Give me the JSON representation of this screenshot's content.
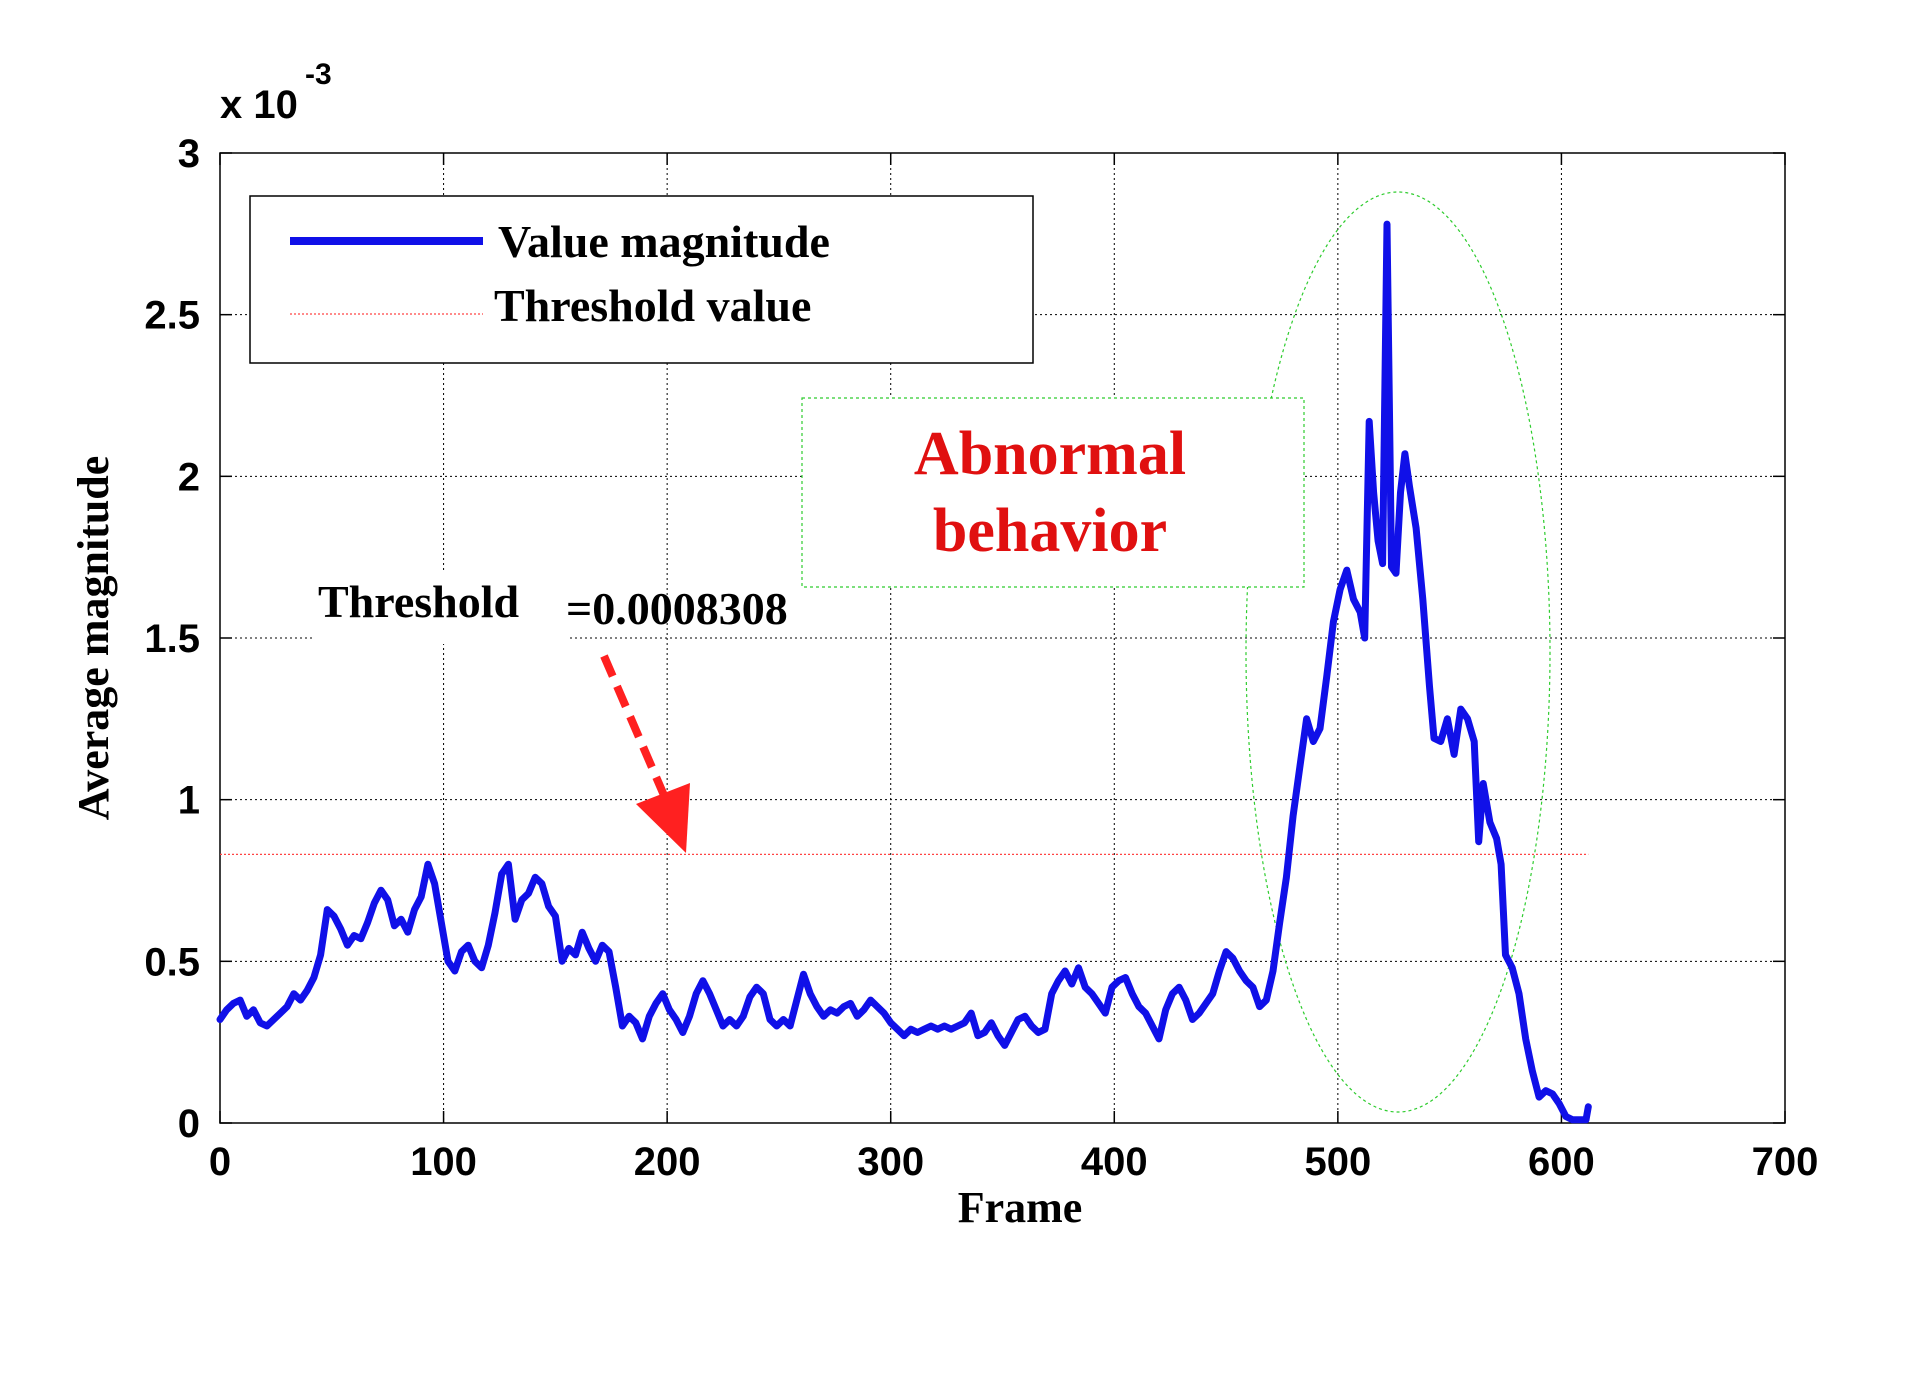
{
  "chart_data": {
    "type": "line",
    "xlabel": "Frame",
    "ylabel": "Average magnitude",
    "y_exponent_base": "x 10",
    "y_exponent_power": "-3",
    "xlim": [
      0,
      700
    ],
    "ylim": [
      0,
      3
    ],
    "x_ticks": [
      "0",
      "100",
      "200",
      "300",
      "400",
      "500",
      "600",
      "700"
    ],
    "y_ticks": [
      "0",
      "0.5",
      "1",
      "1.5",
      "2",
      "2.5",
      "3"
    ],
    "grid": true,
    "legend_position": "top-left",
    "threshold": {
      "name": "Threshold value",
      "value": 0.8308,
      "x_range": [
        0,
        612
      ],
      "color": "#ff4444"
    },
    "series": [
      {
        "name": "Value magnitude",
        "color": "#1010e8",
        "points": [
          [
            0,
            0.32
          ],
          [
            3,
            0.35
          ],
          [
            6,
            0.37
          ],
          [
            9,
            0.38
          ],
          [
            12,
            0.33
          ],
          [
            15,
            0.35
          ],
          [
            18,
            0.31
          ],
          [
            21,
            0.3
          ],
          [
            24,
            0.32
          ],
          [
            27,
            0.34
          ],
          [
            30,
            0.36
          ],
          [
            33,
            0.4
          ],
          [
            36,
            0.38
          ],
          [
            39,
            0.41
          ],
          [
            42,
            0.45
          ],
          [
            45,
            0.52
          ],
          [
            48,
            0.66
          ],
          [
            51,
            0.64
          ],
          [
            54,
            0.6
          ],
          [
            57,
            0.55
          ],
          [
            60,
            0.58
          ],
          [
            63,
            0.57
          ],
          [
            66,
            0.62
          ],
          [
            69,
            0.68
          ],
          [
            72,
            0.72
          ],
          [
            75,
            0.69
          ],
          [
            78,
            0.61
          ],
          [
            81,
            0.63
          ],
          [
            84,
            0.59
          ],
          [
            87,
            0.66
          ],
          [
            90,
            0.7
          ],
          [
            93,
            0.8
          ],
          [
            96,
            0.74
          ],
          [
            99,
            0.62
          ],
          [
            102,
            0.5
          ],
          [
            105,
            0.47
          ],
          [
            108,
            0.53
          ],
          [
            111,
            0.55
          ],
          [
            114,
            0.5
          ],
          [
            117,
            0.48
          ],
          [
            120,
            0.55
          ],
          [
            123,
            0.65
          ],
          [
            126,
            0.77
          ],
          [
            129,
            0.8
          ],
          [
            132,
            0.63
          ],
          [
            135,
            0.69
          ],
          [
            138,
            0.71
          ],
          [
            141,
            0.76
          ],
          [
            144,
            0.74
          ],
          [
            147,
            0.67
          ],
          [
            150,
            0.64
          ],
          [
            153,
            0.5
          ],
          [
            156,
            0.54
          ],
          [
            159,
            0.52
          ],
          [
            162,
            0.59
          ],
          [
            165,
            0.54
          ],
          [
            168,
            0.5
          ],
          [
            171,
            0.55
          ],
          [
            174,
            0.53
          ],
          [
            177,
            0.42
          ],
          [
            180,
            0.3
          ],
          [
            183,
            0.33
          ],
          [
            186,
            0.31
          ],
          [
            189,
            0.26
          ],
          [
            192,
            0.33
          ],
          [
            195,
            0.37
          ],
          [
            198,
            0.4
          ],
          [
            201,
            0.35
          ],
          [
            204,
            0.32
          ],
          [
            207,
            0.28
          ],
          [
            210,
            0.33
          ],
          [
            213,
            0.4
          ],
          [
            216,
            0.44
          ],
          [
            219,
            0.4
          ],
          [
            222,
            0.35
          ],
          [
            225,
            0.3
          ],
          [
            228,
            0.32
          ],
          [
            231,
            0.3
          ],
          [
            234,
            0.33
          ],
          [
            237,
            0.39
          ],
          [
            240,
            0.42
          ],
          [
            243,
            0.4
          ],
          [
            246,
            0.32
          ],
          [
            249,
            0.3
          ],
          [
            252,
            0.32
          ],
          [
            255,
            0.3
          ],
          [
            258,
            0.38
          ],
          [
            261,
            0.46
          ],
          [
            264,
            0.4
          ],
          [
            267,
            0.36
          ],
          [
            270,
            0.33
          ],
          [
            273,
            0.35
          ],
          [
            276,
            0.34
          ],
          [
            279,
            0.36
          ],
          [
            282,
            0.37
          ],
          [
            285,
            0.33
          ],
          [
            288,
            0.35
          ],
          [
            291,
            0.38
          ],
          [
            294,
            0.36
          ],
          [
            297,
            0.34
          ],
          [
            300,
            0.31
          ],
          [
            303,
            0.29
          ],
          [
            306,
            0.27
          ],
          [
            309,
            0.29
          ],
          [
            312,
            0.28
          ],
          [
            315,
            0.29
          ],
          [
            318,
            0.3
          ],
          [
            321,
            0.29
          ],
          [
            324,
            0.3
          ],
          [
            327,
            0.29
          ],
          [
            330,
            0.3
          ],
          [
            333,
            0.31
          ],
          [
            336,
            0.34
          ],
          [
            339,
            0.27
          ],
          [
            342,
            0.28
          ],
          [
            345,
            0.31
          ],
          [
            348,
            0.27
          ],
          [
            351,
            0.24
          ],
          [
            354,
            0.28
          ],
          [
            357,
            0.32
          ],
          [
            360,
            0.33
          ],
          [
            363,
            0.3
          ],
          [
            366,
            0.28
          ],
          [
            369,
            0.29
          ],
          [
            372,
            0.4
          ],
          [
            375,
            0.44
          ],
          [
            378,
            0.47
          ],
          [
            381,
            0.43
          ],
          [
            384,
            0.48
          ],
          [
            387,
            0.42
          ],
          [
            390,
            0.4
          ],
          [
            393,
            0.37
          ],
          [
            396,
            0.34
          ],
          [
            399,
            0.42
          ],
          [
            402,
            0.44
          ],
          [
            405,
            0.45
          ],
          [
            408,
            0.4
          ],
          [
            411,
            0.36
          ],
          [
            414,
            0.34
          ],
          [
            417,
            0.3
          ],
          [
            420,
            0.26
          ],
          [
            423,
            0.35
          ],
          [
            426,
            0.4
          ],
          [
            429,
            0.42
          ],
          [
            432,
            0.38
          ],
          [
            435,
            0.32
          ],
          [
            438,
            0.34
          ],
          [
            441,
            0.37
          ],
          [
            444,
            0.4
          ],
          [
            447,
            0.47
          ],
          [
            450,
            0.53
          ],
          [
            453,
            0.51
          ],
          [
            456,
            0.47
          ],
          [
            459,
            0.44
          ],
          [
            462,
            0.42
          ],
          [
            465,
            0.36
          ],
          [
            468,
            0.38
          ],
          [
            471,
            0.47
          ],
          [
            474,
            0.62
          ],
          [
            477,
            0.76
          ],
          [
            480,
            0.95
          ],
          [
            483,
            1.1
          ],
          [
            486,
            1.25
          ],
          [
            489,
            1.18
          ],
          [
            492,
            1.22
          ],
          [
            495,
            1.38
          ],
          [
            498,
            1.55
          ],
          [
            501,
            1.65
          ],
          [
            504,
            1.71
          ],
          [
            507,
            1.62
          ],
          [
            510,
            1.58
          ],
          [
            512,
            1.5
          ],
          [
            514,
            2.17
          ],
          [
            516,
            1.95
          ],
          [
            518,
            1.8
          ],
          [
            520,
            1.73
          ],
          [
            522,
            2.78
          ],
          [
            524,
            1.72
          ],
          [
            526,
            1.7
          ],
          [
            528,
            1.95
          ],
          [
            530,
            2.07
          ],
          [
            532,
            1.97
          ],
          [
            535,
            1.84
          ],
          [
            538,
            1.62
          ],
          [
            541,
            1.35
          ],
          [
            543,
            1.19
          ],
          [
            546,
            1.18
          ],
          [
            549,
            1.25
          ],
          [
            552,
            1.14
          ],
          [
            555,
            1.28
          ],
          [
            558,
            1.25
          ],
          [
            561,
            1.18
          ],
          [
            563,
            0.87
          ],
          [
            565,
            1.05
          ],
          [
            568,
            0.93
          ],
          [
            571,
            0.88
          ],
          [
            573,
            0.8
          ],
          [
            575,
            0.52
          ],
          [
            578,
            0.48
          ],
          [
            581,
            0.4
          ],
          [
            584,
            0.26
          ],
          [
            587,
            0.16
          ],
          [
            590,
            0.08
          ],
          [
            593,
            0.1
          ],
          [
            596,
            0.09
          ],
          [
            599,
            0.06
          ],
          [
            602,
            0.02
          ],
          [
            605,
            0.01
          ],
          [
            608,
            0.01
          ],
          [
            611,
            0.01
          ],
          [
            612,
            0.05
          ]
        ]
      }
    ],
    "annotations": {
      "threshold_label": "Threshold",
      "threshold_value_label": "=0.0008308",
      "abnormal_line1": "Abnormal",
      "abnormal_line2": "behavior"
    }
  }
}
